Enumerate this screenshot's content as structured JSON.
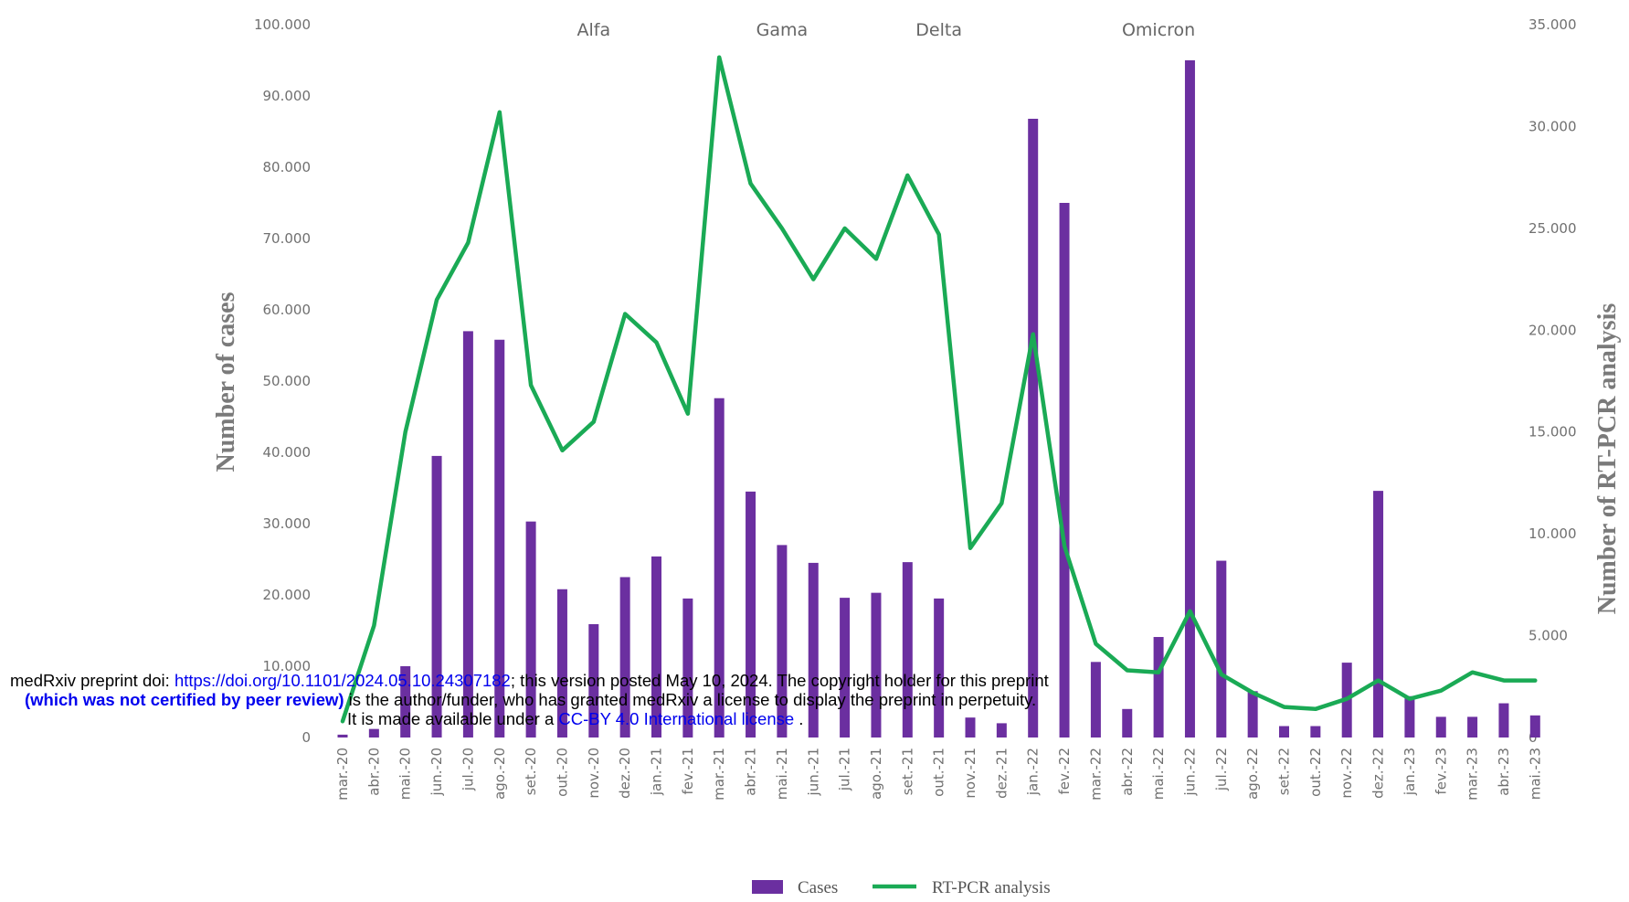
{
  "chart_data": {
    "type": "bar",
    "categories": [
      "mar.-20",
      "abr.-20",
      "mai.-20",
      "jun.-20",
      "jul.-20",
      "ago.-20",
      "set.-20",
      "out.-20",
      "nov.-20",
      "dez.-20",
      "jan.-21",
      "fev.-21",
      "mar.-21",
      "abr.-21",
      "mai.-21",
      "jun.-21",
      "jul.-21",
      "ago.-21",
      "set.-21",
      "out.-21",
      "nov.-21",
      "dez.-21",
      "jan.-22",
      "fev.-22",
      "mar.-22",
      "abr.-22",
      "mai.-22",
      "jun.-22",
      "jul.-22",
      "ago.-22",
      "set.-22",
      "out.-22",
      "nov.-22",
      "dez.-22",
      "jan.-23",
      "fev.-23",
      "mar.-23",
      "abr.-23",
      "mai.-23"
    ],
    "series": [
      {
        "name": "Cases",
        "type": "bar",
        "axis": "left",
        "color": "#6b2fa0",
        "values": [
          400,
          1200,
          10000,
          39500,
          57000,
          55800,
          30300,
          20800,
          15900,
          22500,
          25400,
          19500,
          47600,
          34500,
          27000,
          24500,
          19600,
          20300,
          24600,
          19500,
          2800,
          2000,
          86800,
          75000,
          10600,
          4000,
          14100,
          95000,
          24800,
          6500,
          1600,
          1600,
          10500,
          34600,
          5800,
          2900,
          2900,
          4800,
          3100
        ]
      },
      {
        "name": "RT-PCR analysis",
        "type": "line",
        "axis": "right",
        "color": "#1aaa55",
        "values": [
          800,
          5500,
          15000,
          21500,
          24300,
          30700,
          17300,
          14100,
          15500,
          20800,
          19400,
          15900,
          33400,
          27200,
          25000,
          22500,
          25000,
          23500,
          27600,
          24700,
          9300,
          11500,
          19800,
          9400,
          4600,
          3300,
          3200,
          6200,
          3100,
          2200,
          1500,
          1400,
          1900,
          2800,
          1900,
          2300,
          3200,
          2800,
          2800
        ]
      }
    ],
    "y_left": {
      "label": "Number of cases",
      "range": [
        0,
        100000
      ],
      "ticks": [
        "0",
        "10.000",
        "20.000",
        "30.000",
        "40.000",
        "50.000",
        "60.000",
        "70.000",
        "80.000",
        "90.000",
        "100.000"
      ]
    },
    "y_right": {
      "label": "Number of RT-PCR analysis",
      "range": [
        0,
        35000
      ],
      "ticks": [
        "0",
        "5.000",
        "10.000",
        "15.000",
        "20.000",
        "25.000",
        "30.000",
        "35.000"
      ]
    },
    "annotations": [
      {
        "text": "Alfa",
        "x": "nov.-20"
      },
      {
        "text": "Gama",
        "x": "mai.-21"
      },
      {
        "text": "Delta",
        "x": "out.-21"
      },
      {
        "text": "Omicron",
        "x": "mai.-22"
      }
    ],
    "legend": {
      "placement": "bottom-center",
      "items": [
        "Cases",
        "RT-PCR analysis"
      ]
    },
    "grid": false
  },
  "banner": {
    "line1_prefix": "medRxiv preprint doi: ",
    "doi_link": "https://doi.org/10.1101/2024.05.10.24307182",
    "line1_suffix": "; this version posted May 10, 2024. The copyright holder for this preprint",
    "line2_bold": "(which was not certified by peer review)",
    "line2_rest": " is the author/funder, who has granted medRxiv a license to display the preprint in perpetuity.",
    "line3_prefix": "It is made available under a ",
    "license_link": "CC-BY 4.0 International license",
    "line3_suffix": " ."
  }
}
